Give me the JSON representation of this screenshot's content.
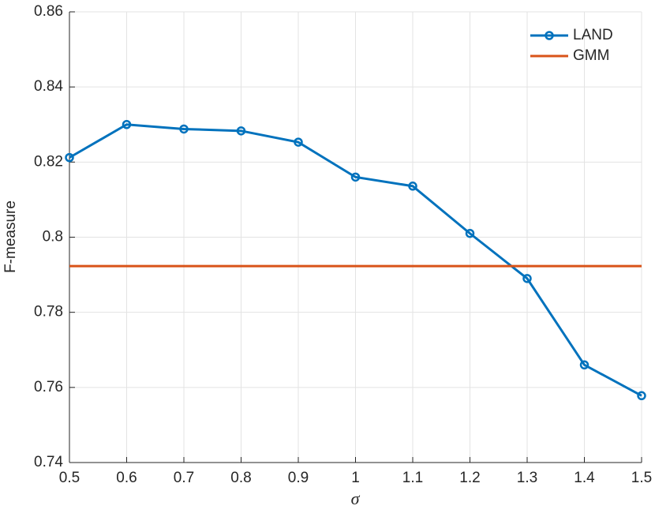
{
  "chart_data": {
    "type": "line",
    "x_label": "σ",
    "y_label": "F-measure",
    "x": [
      0.5,
      0.6,
      0.7,
      0.8,
      0.9,
      1,
      1.1,
      1.2,
      1.3,
      1.4,
      1.5
    ],
    "series": [
      {
        "name": "LAND",
        "color": "#0072bd",
        "marker": "o",
        "values": [
          0.8212,
          0.83,
          0.8288,
          0.8283,
          0.8253,
          0.816,
          0.8136,
          0.801,
          0.789,
          0.766,
          0.7578
        ]
      },
      {
        "name": "GMM",
        "color": "#d95319",
        "marker": "none",
        "values": [
          0.7923,
          0.7923,
          0.7923,
          0.7923,
          0.7923,
          0.7923,
          0.7923,
          0.7923,
          0.7923,
          0.7923,
          0.7923
        ]
      }
    ],
    "xlim": [
      0.5,
      1.5
    ],
    "xticks": [
      0.5,
      0.6,
      0.7,
      0.8,
      0.9,
      1,
      1.1,
      1.2,
      1.3,
      1.4,
      1.5
    ],
    "ylim": [
      0.74,
      0.86
    ],
    "yticks": [
      0.74,
      0.76,
      0.78,
      0.8,
      0.82,
      0.84,
      0.86
    ],
    "grid": true,
    "legend": "top-right"
  }
}
